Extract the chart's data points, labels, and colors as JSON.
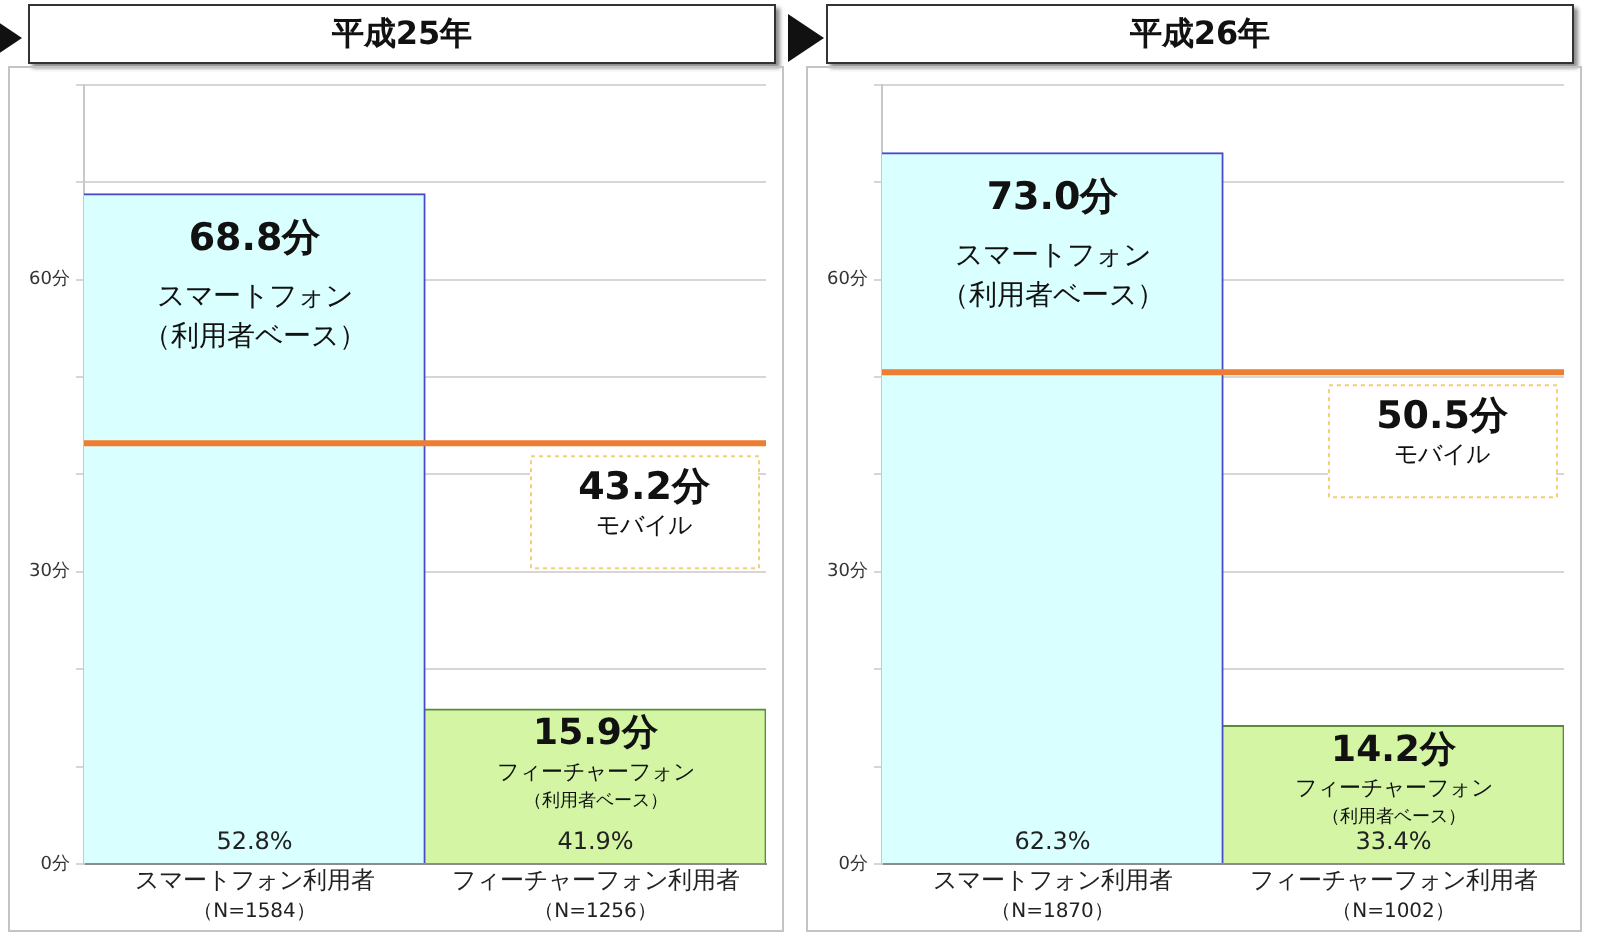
{
  "chart_data": [
    {
      "type": "bar",
      "title": "平成25年",
      "categories": [
        "スマートフォン利用者（N=1584）",
        "フィーチャーフォン利用者（N=1256）"
      ],
      "series": [
        {
          "name": "スマートフォン（利用者ベース）",
          "color": "#d9ffff",
          "values": [
            68.8,
            null
          ],
          "value_labels": [
            "68.8分",
            null
          ]
        },
        {
          "name": "フィーチャーフォン（利用者ベース）",
          "color": "#d3f5a4",
          "values": [
            null,
            15.9
          ],
          "value_labels": [
            null,
            "15.9分"
          ]
        }
      ],
      "annotations": [
        "52.8%",
        "41.9%",
        {
          "text": "モバイル",
          "y": 43.2
        }
      ],
      "ref_lines": [
        {
          "axis": "y",
          "value": 43.2,
          "label": "43.2分",
          "color": "#ed7d31"
        }
      ],
      "ylim": [
        0,
        80
      ],
      "yticks": [
        {
          "value": 0,
          "label": "0分"
        },
        {
          "value": 10,
          "label": null
        },
        {
          "value": 20,
          "label": null
        },
        {
          "value": 30,
          "label": "30分"
        },
        {
          "value": 40,
          "label": null
        },
        {
          "value": 50,
          "label": null
        },
        {
          "value": 60,
          "label": "60分"
        },
        {
          "value": 70,
          "label": null
        },
        {
          "value": 80,
          "label": null
        }
      ],
      "grid": "y"
    },
    {
      "type": "bar",
      "title": "平成26年",
      "categories": [
        "スマートフォン利用者（N=1870）",
        "フィーチャーフォン利用者（N=1002）"
      ],
      "series": [
        {
          "name": "スマートフォン（利用者ベース）",
          "color": "#d9ffff",
          "values": [
            73.0,
            null
          ],
          "value_labels": [
            "73.0分",
            null
          ]
        },
        {
          "name": "フィーチャーフォン（利用者ベース）",
          "color": "#d3f5a4",
          "values": [
            null,
            14.2
          ],
          "value_labels": [
            null,
            "14.2分"
          ]
        }
      ],
      "annotations": [
        "62.3%",
        "33.4%",
        {
          "text": "モバイル",
          "y": 50.5
        }
      ],
      "ref_lines": [
        {
          "axis": "y",
          "value": 50.5,
          "label": "50.5分",
          "color": "#ed7d31"
        }
      ],
      "ylim": [
        0,
        80
      ],
      "yticks": [
        {
          "value": 0,
          "label": "0分"
        },
        {
          "value": 10,
          "label": null
        },
        {
          "value": 20,
          "label": null
        },
        {
          "value": 30,
          "label": "30分"
        },
        {
          "value": 40,
          "label": null
        },
        {
          "value": 50,
          "label": null
        },
        {
          "value": 60,
          "label": "60分"
        },
        {
          "value": 70,
          "label": null
        },
        {
          "value": 80,
          "label": null
        }
      ],
      "grid": "y"
    }
  ]
}
